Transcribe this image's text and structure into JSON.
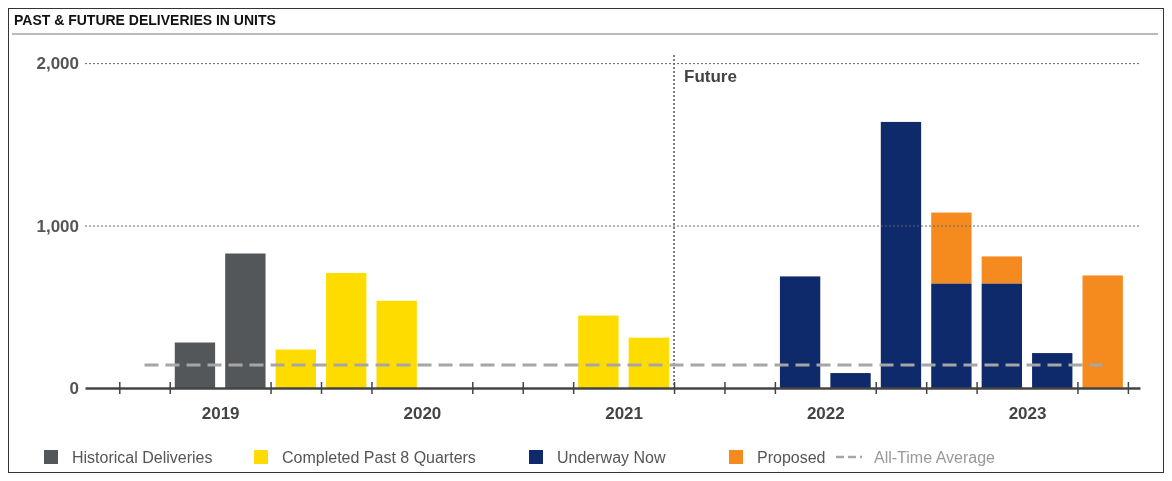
{
  "chart_data": {
    "type": "bar",
    "title": "PAST & FUTURE DELIVERIES IN UNITS",
    "stacked": true,
    "x": [
      2019.375,
      2019.625,
      2019.875,
      2020.125,
      2020.375,
      2020.625,
      2020.875,
      2021.125,
      2021.375,
      2021.625,
      2021.875,
      2022.125,
      2022.375,
      2022.625,
      2022.875,
      2023.125,
      2023.375,
      2023.625,
      2023.875
    ],
    "series": [
      {
        "name": "Historical Deliveries",
        "color": "#54575a",
        "values": [
          280,
          828,
          null,
          null,
          null,
          null,
          null,
          null,
          null,
          null,
          null,
          null,
          null,
          null,
          null,
          null,
          null,
          null,
          null
        ]
      },
      {
        "name": "Completed Past 8 Quarters",
        "color": "#fedc00",
        "values": [
          null,
          null,
          237,
          708,
          537,
          null,
          null,
          null,
          446,
          310,
          null,
          null,
          null,
          null,
          null,
          null,
          null,
          null,
          null
        ]
      },
      {
        "name": "Underway Now",
        "color": "#0f2a6b",
        "values": [
          null,
          null,
          null,
          null,
          null,
          null,
          null,
          null,
          null,
          null,
          null,
          null,
          687,
          92,
          1638,
          644,
          644,
          215,
          null
        ]
      },
      {
        "name": "Proposed",
        "color": "#f58a1f",
        "values": [
          null,
          null,
          null,
          null,
          null,
          null,
          null,
          null,
          null,
          null,
          null,
          null,
          null,
          null,
          null,
          436,
          166,
          null,
          693
        ]
      }
    ],
    "xlim": [
      2018.83,
      2024.06
    ],
    "xticks": [
      {
        "value": 2019,
        "label": null
      },
      {
        "value": 2019.25,
        "label": null
      },
      {
        "value": 2019.5,
        "label": "2019"
      },
      {
        "value": 2019.75,
        "label": null
      },
      {
        "value": 2020,
        "label": null
      },
      {
        "value": 2020.25,
        "label": null
      },
      {
        "value": 2020.5,
        "label": "2020"
      },
      {
        "value": 2020.75,
        "label": null
      },
      {
        "value": 2021,
        "label": null
      },
      {
        "value": 2021.25,
        "label": null
      },
      {
        "value": 2021.5,
        "label": "2021"
      },
      {
        "value": 2021.75,
        "label": null
      },
      {
        "value": 2022,
        "label": null
      },
      {
        "value": 2022.25,
        "label": null
      },
      {
        "value": 2022.5,
        "label": "2022"
      },
      {
        "value": 2022.75,
        "label": null
      },
      {
        "value": 2023,
        "label": null
      },
      {
        "value": 2023.25,
        "label": null
      },
      {
        "value": 2023.5,
        "label": "2023"
      },
      {
        "value": 2023.75,
        "label": null
      },
      {
        "value": 2024,
        "label": null
      }
    ],
    "ylim": [
      0,
      2050
    ],
    "yticks": [
      0,
      {
        "value": 1000,
        "label": "1,000"
      },
      {
        "value": 2000,
        "label": "2,000"
      }
    ],
    "grid": "y",
    "legend": "bottom",
    "ref_lines": [
      {
        "axis": "y",
        "value": 141,
        "label": "All-Time Average",
        "color": "#a6a6a6",
        "line_style": "dashed"
      },
      {
        "axis": "x",
        "value": 2021.75,
        "label": "Future",
        "color": "#555555",
        "line_style": "dotted"
      }
    ]
  }
}
